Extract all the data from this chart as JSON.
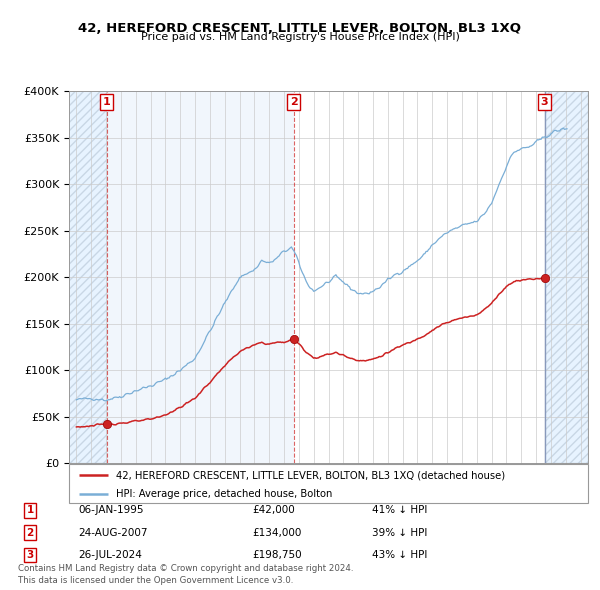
{
  "title": "42, HEREFORD CRESCENT, LITTLE LEVER, BOLTON, BL3 1XQ",
  "subtitle": "Price paid vs. HM Land Registry's House Price Index (HPI)",
  "hpi_label": "HPI: Average price, detached house, Bolton",
  "property_label": "42, HEREFORD CRESCENT, LITTLE LEVER, BOLTON, BL3 1XQ (detached house)",
  "hpi_color": "#7aaed6",
  "property_color": "#cc2222",
  "sale_color": "#cc2222",
  "background_hatch_color": "#ddeeff",
  "sales": [
    {
      "date": 1995.03,
      "price": 42000,
      "label": "1",
      "date_str": "06-JAN-1995",
      "price_str": "£42,000",
      "hpi_pct": "41% ↓ HPI"
    },
    {
      "date": 2007.65,
      "price": 134000,
      "label": "2",
      "date_str": "24-AUG-2007",
      "price_str": "£134,000",
      "hpi_pct": "39% ↓ HPI"
    },
    {
      "date": 2024.57,
      "price": 198750,
      "label": "3",
      "date_str": "26-JUL-2024",
      "price_str": "£198,750",
      "hpi_pct": "43% ↓ HPI"
    }
  ],
  "xlim": [
    1992.5,
    2027.5
  ],
  "ylim": [
    0,
    400000
  ],
  "yticks": [
    0,
    50000,
    100000,
    150000,
    200000,
    250000,
    300000,
    350000,
    400000
  ],
  "footer": "Contains HM Land Registry data © Crown copyright and database right 2024.\nThis data is licensed under the Open Government Licence v3.0.",
  "copyright_color": "#555555"
}
